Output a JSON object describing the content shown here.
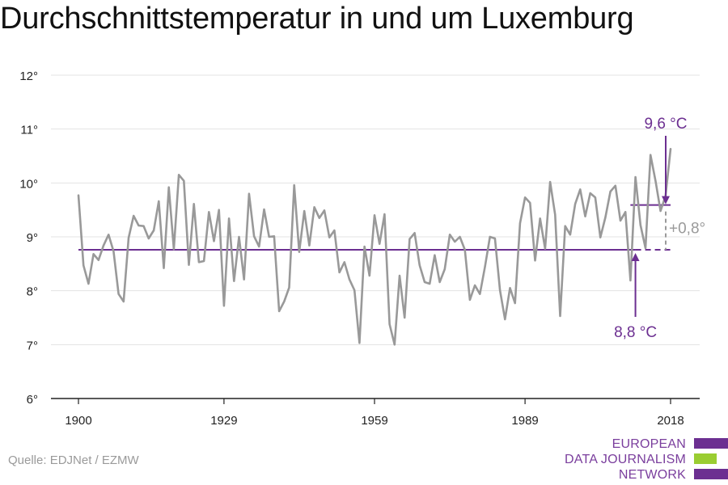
{
  "title": "Durchschnittstemperatur in und um Luxemburg",
  "source": "Quelle: EDJNet / EZMW",
  "logo": {
    "lines": [
      "EUROPEAN",
      "DATA JOURNALISM",
      "NETWORK"
    ],
    "colors": {
      "text": "#7a3e9d",
      "purple": "#6c2f91",
      "green": "#9acd32"
    }
  },
  "colors": {
    "series": "#999999",
    "average": "#6c2f91",
    "diff": "#9a9a9a",
    "grid": "#e3e3e3",
    "axis": "#222222"
  },
  "chart_data": {
    "type": "line",
    "title": "Durchschnittstemperatur in und um Luxemburg",
    "xlabel": "",
    "ylabel": "",
    "xlim": [
      1900,
      2018
    ],
    "ylim": [
      6,
      12
    ],
    "x_ticks": [
      1900,
      1929,
      1959,
      1989,
      2018
    ],
    "x_tick_labels": [
      "1900",
      "1929",
      "1959",
      "1989",
      "2018"
    ],
    "y_ticks": [
      6,
      7,
      8,
      9,
      10,
      11,
      12
    ],
    "y_tick_labels": [
      "6°",
      "7°",
      "8°",
      "9°",
      "10°",
      "11°",
      "12°"
    ],
    "grid": true,
    "series": [
      {
        "x": [
          1900,
          1901,
          1902,
          1903,
          1904,
          1905,
          1906,
          1907,
          1908,
          1909,
          1910,
          1911,
          1912,
          1913,
          1914,
          1915,
          1916,
          1917,
          1918,
          1919,
          1920,
          1921,
          1922,
          1923,
          1924,
          1925,
          1926,
          1927,
          1928,
          1929,
          1930,
          1931,
          1932,
          1933,
          1934,
          1935,
          1936,
          1937,
          1938,
          1939,
          1940,
          1941,
          1942,
          1943,
          1944,
          1945,
          1946,
          1947,
          1948,
          1949,
          1950,
          1951,
          1952,
          1953,
          1954,
          1955,
          1956,
          1957,
          1958,
          1959,
          1960,
          1961,
          1962,
          1963,
          1964,
          1965,
          1966,
          1967,
          1968,
          1969,
          1970,
          1971,
          1972,
          1973,
          1974,
          1975,
          1976,
          1977,
          1978,
          1979,
          1980,
          1981,
          1982,
          1983,
          1984,
          1985,
          1986,
          1987,
          1988,
          1989,
          1990,
          1991,
          1992,
          1993,
          1994,
          1995,
          1996,
          1997,
          1998,
          1999,
          2000,
          2001,
          2002,
          2003,
          2004,
          2005,
          2006,
          2007,
          2008,
          2009,
          2010,
          2011,
          2012,
          2013,
          2014,
          2015,
          2016,
          2017,
          2018
        ],
        "values": [
          9.77,
          8.47,
          8.13,
          8.68,
          8.57,
          8.84,
          9.04,
          8.73,
          7.94,
          7.8,
          8.98,
          9.39,
          9.21,
          9.2,
          8.97,
          9.12,
          9.66,
          8.42,
          9.92,
          8.77,
          10.15,
          10.04,
          8.48,
          9.61,
          8.53,
          8.55,
          9.46,
          8.92,
          9.5,
          7.72,
          9.34,
          8.18,
          9.0,
          8.21,
          9.8,
          9.01,
          8.82,
          9.51,
          9.0,
          9.01,
          7.62,
          7.8,
          8.06,
          9.96,
          8.72,
          9.48,
          8.84,
          9.55,
          9.35,
          9.49,
          8.99,
          9.12,
          8.34,
          8.53,
          8.21,
          8.01,
          7.03,
          8.82,
          8.28,
          9.4,
          8.87,
          9.42,
          7.38,
          7.0,
          8.28,
          7.5,
          8.96,
          9.07,
          8.47,
          8.16,
          8.13,
          8.66,
          8.16,
          8.4,
          9.04,
          8.91,
          9.0,
          8.76,
          7.83,
          8.1,
          7.94,
          8.44,
          9.0,
          8.97,
          8.01,
          7.47,
          8.05,
          7.77,
          9.25,
          9.73,
          9.63,
          8.56,
          9.34,
          8.78,
          10.02,
          9.41,
          7.53,
          9.2,
          9.04,
          9.61,
          9.88,
          9.38,
          9.81,
          9.73,
          8.99,
          9.36,
          9.84,
          9.95,
          9.3,
          9.46,
          8.19,
          10.11,
          9.22,
          8.79,
          10.52,
          10.04,
          9.48,
          9.76,
          10.63
        ]
      }
    ],
    "reference_lines": [
      {
        "label": "8,8 °C",
        "value": 8.76,
        "from": 1900,
        "to": 2018
      },
      {
        "label": "9,6 °C",
        "value": 9.59,
        "from": 2010,
        "to": 2018
      }
    ],
    "annotations": {
      "baseline": "8,8 °C",
      "recent": "9,6 °C",
      "difference": "+0,8°"
    }
  }
}
